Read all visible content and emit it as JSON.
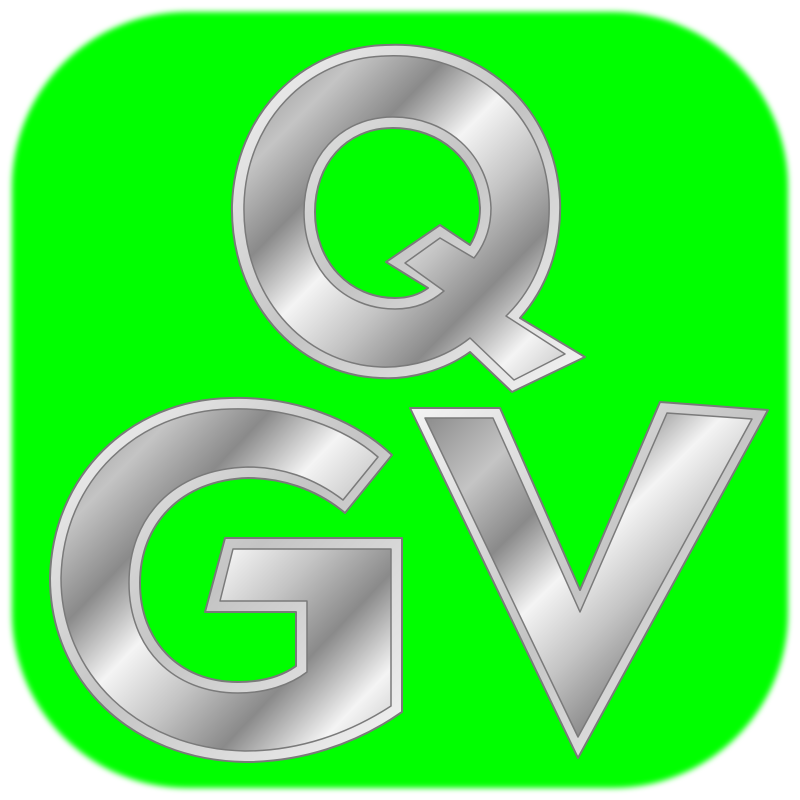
{
  "logo": {
    "letters": [
      "Q",
      "G",
      "V"
    ],
    "icon": "qgv-app-icon",
    "colors": {
      "background": "#00ff00",
      "page": "#ffffff",
      "metal_light": "#f4f4f4",
      "metal_mid": "#c4c4c4",
      "metal_dark": "#8a8a8a",
      "metal_outline": "#7a7a7a"
    }
  }
}
